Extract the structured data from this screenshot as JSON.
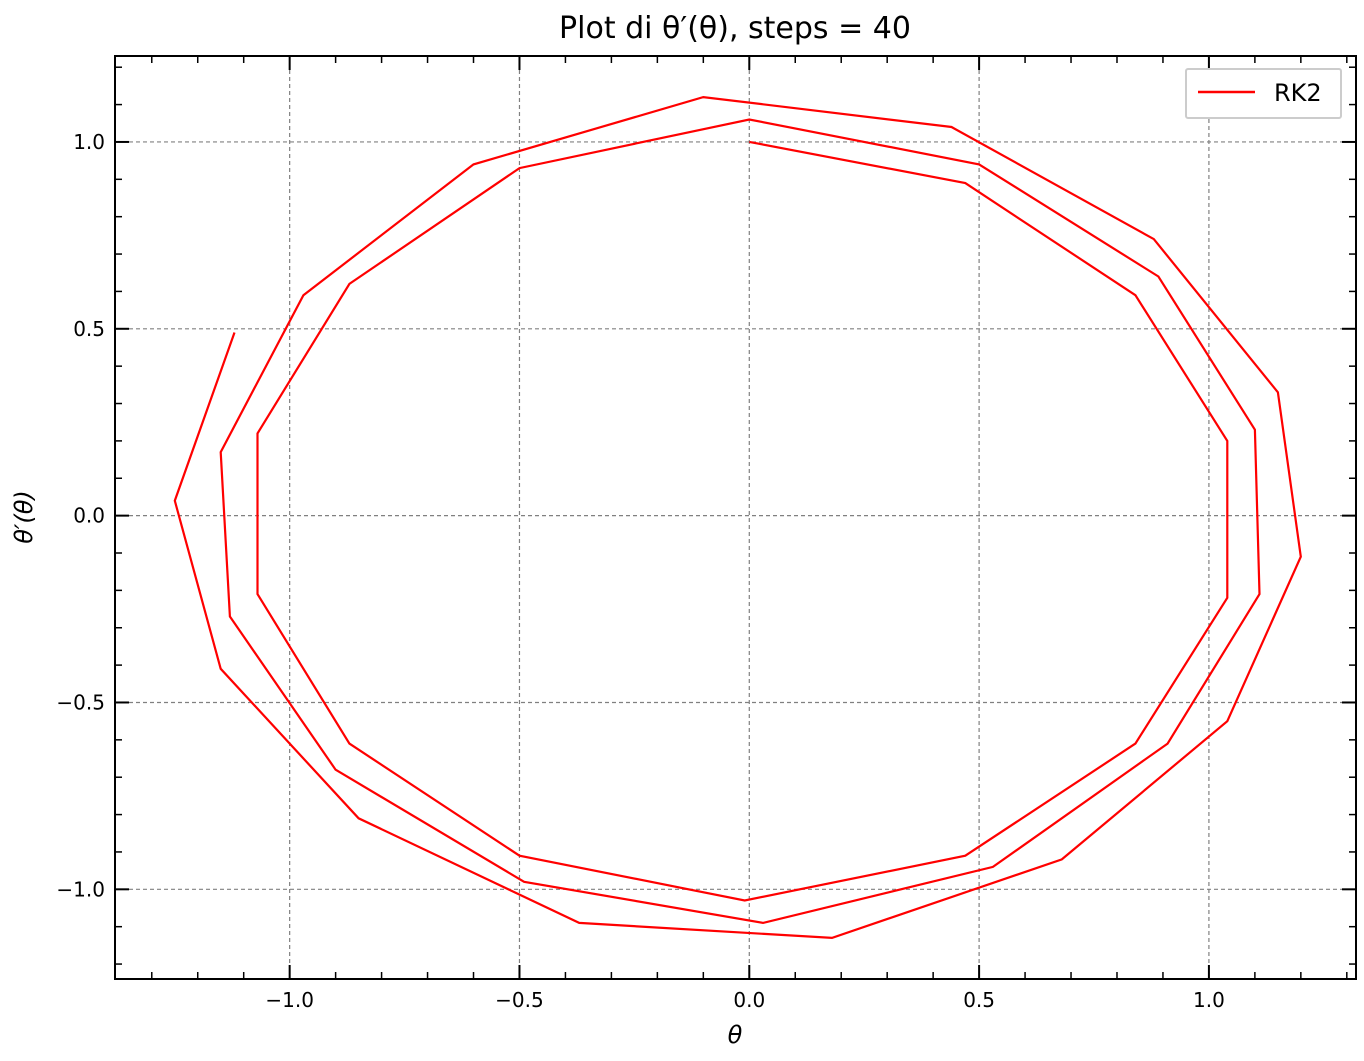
{
  "chart_data": {
    "type": "line",
    "title": "Plot di θ′(θ), steps = 40",
    "xlabel": "θ",
    "ylabel": "θ′(θ)",
    "xlim": [
      -1.38,
      1.32
    ],
    "ylim": [
      -1.24,
      1.23
    ],
    "xticks": [
      -1.0,
      -0.5,
      0.0,
      0.5,
      1.0
    ],
    "xtick_labels": [
      "−1.0",
      "−0.5",
      "0.0",
      "0.5",
      "1.0"
    ],
    "yticks": [
      -1.0,
      -0.5,
      0.0,
      0.5,
      1.0
    ],
    "ytick_labels": [
      "−1.0",
      "−0.5",
      "0.0",
      "0.5",
      "1.0"
    ],
    "grid": true,
    "legend_position": "top-right",
    "series": [
      {
        "name": "RK2",
        "color": "#ff0000",
        "x": [
          0.0,
          0.47,
          0.84,
          1.04,
          1.04,
          0.84,
          0.47,
          -0.01,
          -0.5,
          -0.87,
          -1.07,
          -1.07,
          -0.87,
          -0.5,
          0.0,
          0.5,
          0.89,
          1.1,
          1.11,
          0.91,
          0.53,
          0.03,
          -0.49,
          -0.9,
          -1.13,
          -1.15,
          -0.97,
          -0.6,
          -0.1,
          0.44,
          0.88,
          1.15,
          1.2,
          1.04,
          0.68,
          0.18,
          -0.37,
          -0.85,
          -1.15,
          -1.25,
          -1.12
        ],
        "y": [
          1.0,
          0.89,
          0.59,
          0.2,
          -0.22,
          -0.61,
          -0.91,
          -1.03,
          -0.91,
          -0.61,
          -0.21,
          0.22,
          0.62,
          0.93,
          1.06,
          0.94,
          0.64,
          0.23,
          -0.21,
          -0.61,
          -0.94,
          -1.09,
          -0.98,
          -0.68,
          -0.27,
          0.17,
          0.59,
          0.94,
          1.12,
          1.04,
          0.74,
          0.33,
          -0.11,
          -0.55,
          -0.92,
          -1.13,
          -1.09,
          -0.81,
          -0.41,
          0.04,
          0.49
        ]
      }
    ]
  }
}
